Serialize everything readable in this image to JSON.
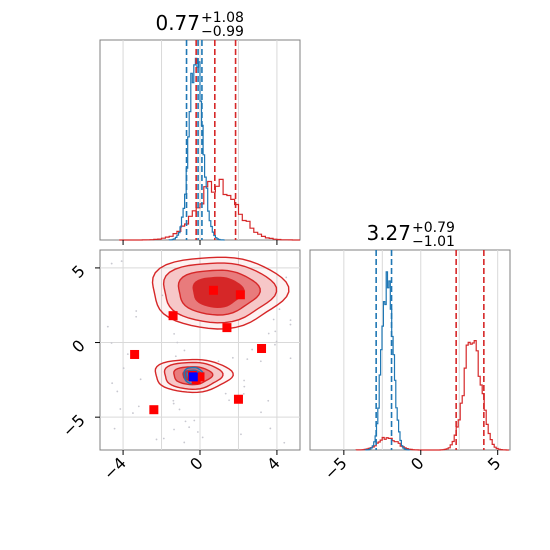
{
  "chart_data": {
    "type": "corner",
    "grid": true,
    "colors": {
      "blue": "#1f77b4",
      "red": "#d62728",
      "red_fill_dark": "#d62728",
      "red_fill_mid": "#e87b7c",
      "red_fill_light": "#f6c7c8",
      "blue_fill": "#7aa6cf",
      "marker_red": "#ff0000",
      "marker_blue": "#0000ff"
    },
    "panels": [
      {
        "id": "hist_x",
        "type": "histogram",
        "title": {
          "value": "0.77",
          "plus": "+1.08",
          "minus": "−0.99"
        },
        "xlim": [
          -5.2,
          5.2
        ],
        "x_ticks": [
          -4,
          0,
          4
        ],
        "quantiles": {
          "blue": [
            -0.7,
            -0.1,
            0.1
          ],
          "red": [
            -0.2,
            0.77,
            1.85
          ]
        },
        "series": [
          {
            "name": "",
            "color": "blue",
            "mu": -0.25,
            "sigma": 0.35,
            "counts_peak": 1.0
          },
          {
            "name": "",
            "color": "red",
            "mu": 0.77,
            "sigma": 1.05,
            "counts_peak": 0.3
          }
        ]
      },
      {
        "id": "scatter_xy",
        "type": "2d-contour",
        "xlim": [
          -5.2,
          5.2
        ],
        "ylim": [
          -7.2,
          6.2
        ],
        "x_ticks": [
          "−4",
          "0",
          "4"
        ],
        "x_tick_values": [
          -4,
          0,
          4
        ],
        "y_ticks": [
          "−5",
          "0",
          "5"
        ],
        "y_tick_values": [
          -5,
          0,
          5
        ],
        "blobs": [
          {
            "color": "red",
            "cx": 0.9,
            "cy": 3.4,
            "rx": [
              1.3,
              2.1,
              2.9,
              3.5
            ],
            "ry": [
              1.0,
              1.5,
              2.0,
              2.4
            ]
          },
          {
            "color": "red",
            "cx": -0.4,
            "cy": -2.2,
            "rx": [
              0.5,
              1.0,
              1.5,
              2.0
            ],
            "ry": [
              0.35,
              0.6,
              0.9,
              1.1
            ]
          },
          {
            "color": "blue",
            "cx": -0.35,
            "cy": -2.2,
            "rx": [
              0.35,
              0.5
            ],
            "ry": [
              0.35,
              0.55
            ]
          }
        ],
        "red_points": [
          [
            0.7,
            3.5
          ],
          [
            2.1,
            3.2
          ],
          [
            -1.4,
            1.8
          ],
          [
            1.4,
            1.0
          ],
          [
            -3.4,
            -0.8
          ],
          [
            3.2,
            -0.4
          ],
          [
            -2.4,
            -4.5
          ],
          [
            2.0,
            -3.8
          ],
          [
            -0.4,
            -2.2
          ],
          [
            0.0,
            -2.3
          ],
          [
            -0.2,
            -2.5
          ]
        ],
        "blue_points": [
          [
            -0.35,
            -2.3
          ]
        ]
      },
      {
        "id": "hist_y",
        "type": "histogram",
        "title": {
          "value": "3.27",
          "plus": "+0.79",
          "minus": "−1.01"
        },
        "xlim": [
          -7.2,
          5.8
        ],
        "x_ticks": [
          "−5",
          "0",
          "5"
        ],
        "x_tick_values": [
          -5,
          0,
          5
        ],
        "quantiles": {
          "blue": [
            -2.9,
            -1.9
          ],
          "red": [
            2.3,
            4.1
          ]
        },
        "series": [
          {
            "name": "",
            "color": "blue",
            "mu": -2.2,
            "sigma": 0.35,
            "counts_peak": 1.0
          },
          {
            "name": "",
            "color": "red",
            "mu": 3.3,
            "sigma": 0.55,
            "counts_peak": 0.62,
            "sub_mu": -2.2,
            "sub_sigma": 0.6,
            "sub_peak": 0.07
          }
        ]
      }
    ]
  }
}
